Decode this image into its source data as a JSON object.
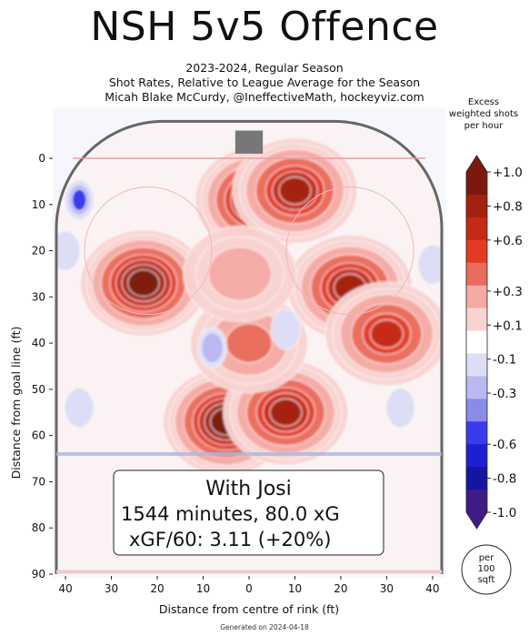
{
  "header": {
    "title": "NSH 5v5 Offence",
    "season": "2023-2024, Regular Season",
    "subtitle": "Shot Rates, Relative to League Average for the Season",
    "author": "Micah Blake McCurdy, @IneffectiveMath, hockeyviz.com"
  },
  "colorbar": {
    "title_lines": [
      "Excess",
      "weighted shots",
      "per hour"
    ],
    "ticks": [
      "+1.0",
      "+0.8",
      "+0.6",
      "+0.3",
      "+0.1",
      "-0.1",
      "-0.3",
      "-0.6",
      "-0.8",
      "-1.0"
    ],
    "colors": [
      "#7a1a0e",
      "#a3210f",
      "#c52a16",
      "#e23a25",
      "#e96b5c",
      "#f4a9a3",
      "#f8d3d1",
      "#ffffff",
      "#ddddf5",
      "#b9b9f0",
      "#8a8ae8",
      "#3b3bee",
      "#1f1fd2",
      "#1515a3",
      "#3e1b86"
    ],
    "unit_badge": [
      "per",
      "100",
      "sqft"
    ]
  },
  "annotation": {
    "line1": "With Josi",
    "line2": "1544 minutes, 80.0 xG",
    "line3": "xGF/60: 3.11 (+20%)"
  },
  "footer": "Generated on 2024-04-18",
  "chart_data": {
    "type": "heatmap",
    "xlabel": "Distance from centre of rink (ft)",
    "ylabel": "Distance from goal line (ft)",
    "xlim": [
      -42,
      42
    ],
    "ylim": [
      0,
      90
    ],
    "x_ticks": [
      "40",
      "30",
      "20",
      "10",
      "0",
      "10",
      "20",
      "30",
      "40"
    ],
    "y_ticks": [
      "0",
      "10",
      "20",
      "30",
      "40",
      "50",
      "60",
      "70",
      "80",
      "90"
    ],
    "hotspots": [
      {
        "x": -23,
        "y": 27,
        "value": 0.9
      },
      {
        "x": 2,
        "y": 9,
        "value": 0.9
      },
      {
        "x": 10,
        "y": 7,
        "value": 0.8
      },
      {
        "x": 22,
        "y": 28,
        "value": 0.8
      },
      {
        "x": 30,
        "y": 38,
        "value": 0.7
      },
      {
        "x": -5,
        "y": 57,
        "value": 0.9
      },
      {
        "x": 8,
        "y": 55,
        "value": 0.8
      },
      {
        "x": 0,
        "y": 40,
        "value": 0.5
      },
      {
        "x": -2,
        "y": 25,
        "value": 0.4
      }
    ],
    "coldspots": [
      {
        "x": -37,
        "y": 9,
        "value": -0.4
      },
      {
        "x": -40,
        "y": 20,
        "value": -0.2
      },
      {
        "x": -8,
        "y": 41,
        "value": -0.3
      },
      {
        "x": 8,
        "y": 37,
        "value": -0.1
      },
      {
        "x": 33,
        "y": 54,
        "value": -0.2
      },
      {
        "x": -37,
        "y": 54,
        "value": -0.1
      },
      {
        "x": 40,
        "y": 23,
        "value": -0.1
      }
    ]
  }
}
